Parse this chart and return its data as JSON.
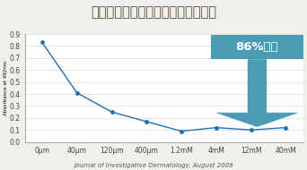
{
  "title": "ルミキシルのチロシナーゼ抑制効果",
  "x_labels": [
    "0μm",
    "40μm",
    "120μm",
    "400μm",
    "1.2mM",
    "4mM",
    "12mM",
    "40mM"
  ],
  "x_values": [
    0,
    1,
    2,
    3,
    4,
    5,
    6,
    7
  ],
  "y_values": [
    0.83,
    0.41,
    0.25,
    0.17,
    0.09,
    0.12,
    0.1,
    0.12
  ],
  "ylim": [
    0.0,
    0.9
  ],
  "yticks": [
    0.0,
    0.1,
    0.2,
    0.3,
    0.4,
    0.5,
    0.6,
    0.7,
    0.8,
    0.9
  ],
  "line_color": "#2071b0",
  "marker_color": "#2071b0",
  "bg_color": "#f0f0eb",
  "plot_bg_color": "#ffffff",
  "annotation_text": "86%抑制",
  "annotation_bg": "#4a9cb5",
  "arrow_color": "#4a9cb5",
  "ylabel": "Absorbance at 492nm",
  "source_text": "Journal of Investigative Dermatology, August 2009",
  "title_color": "#5a4a3a",
  "title_fontsize": 10.5,
  "source_fontsize": 5.0,
  "ylabel_fontsize": 4.0,
  "tick_fontsize": 5.5,
  "annot_fontsize": 9.5
}
